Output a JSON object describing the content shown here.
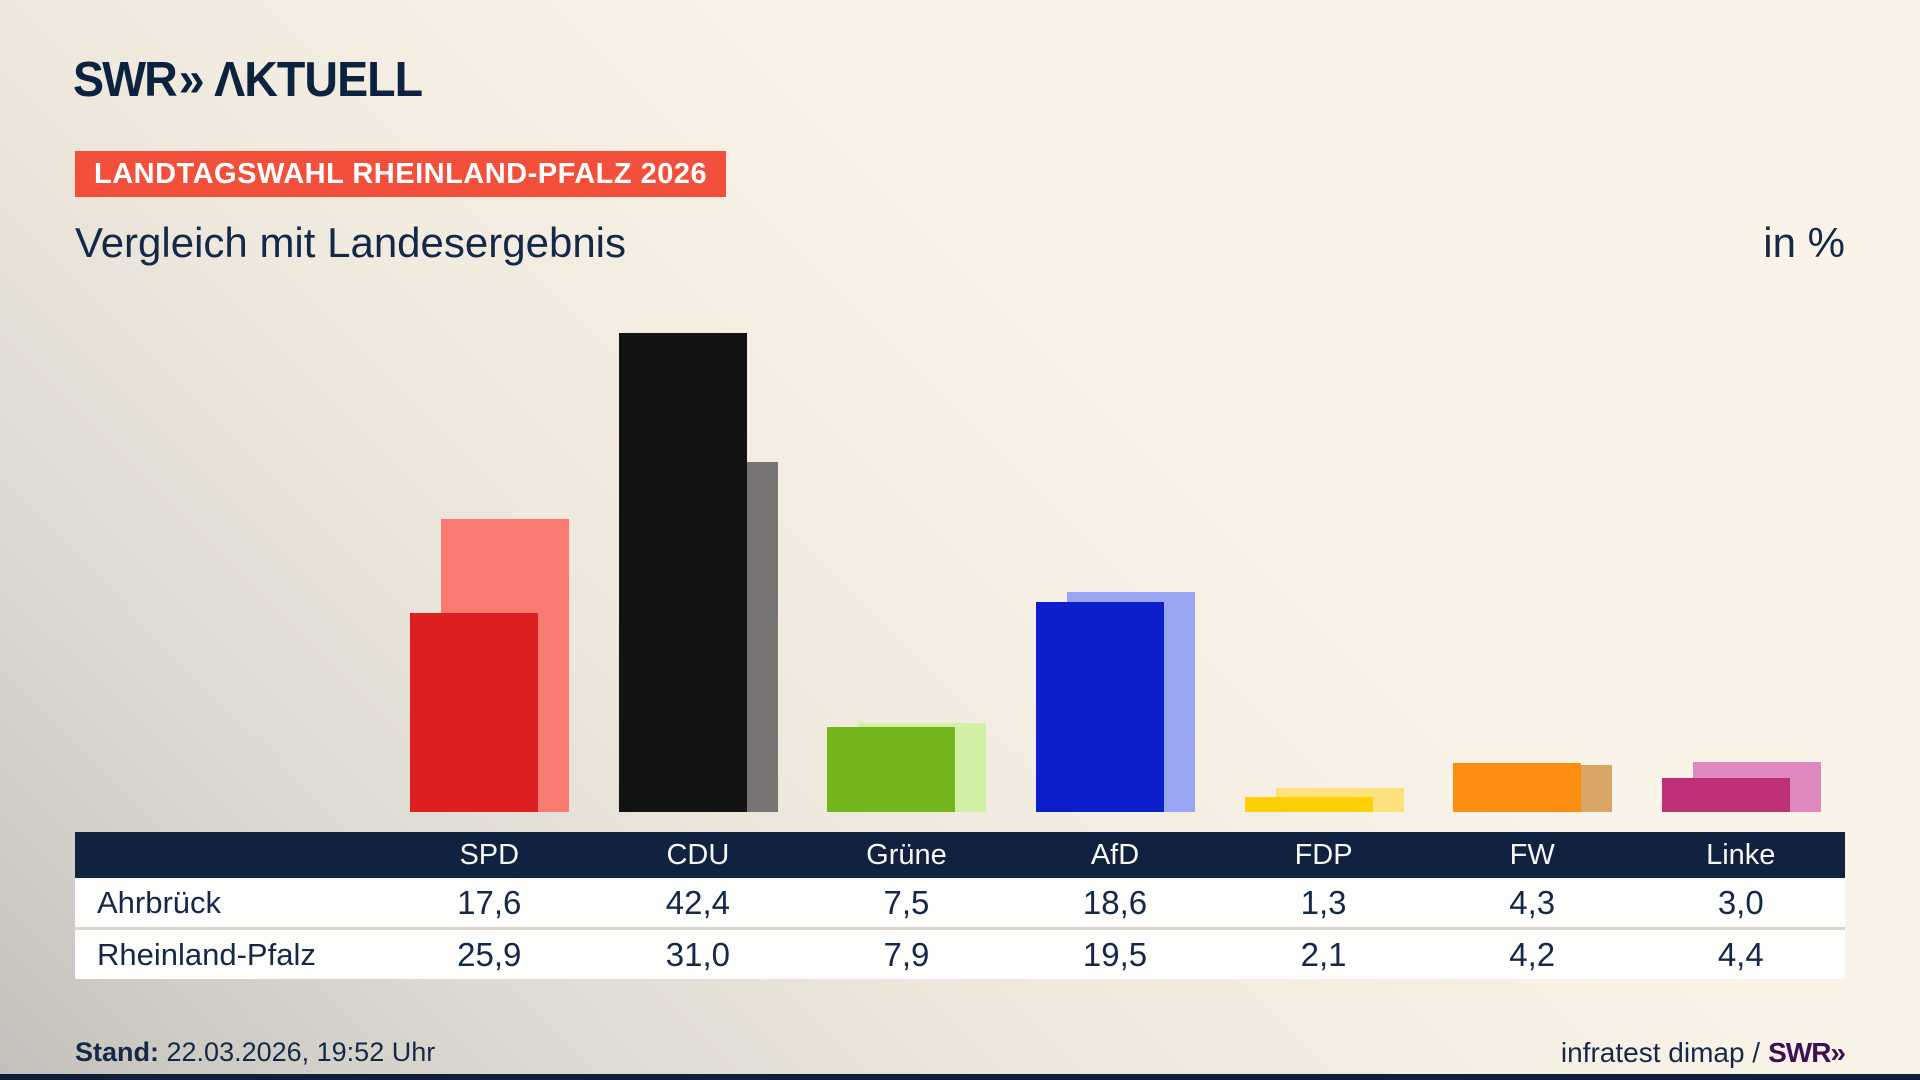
{
  "header": {
    "logo": {
      "swr": "SWR",
      "chevron": "»",
      "aktuell": "ΛKTUELL"
    },
    "badge": "LANDTAGSWAHL RHEINLAND-PFALZ 2026",
    "title": "Vergleich mit Landesergebnis",
    "unit": "in %"
  },
  "chart_data": {
    "type": "bar",
    "title": "Vergleich mit Landesergebnis",
    "unit": "in %",
    "categories": [
      "SPD",
      "CDU",
      "Grüne",
      "AfD",
      "FDP",
      "FW",
      "Linke"
    ],
    "series": [
      {
        "name": "Ahrbrück",
        "role": "front",
        "values": [
          17.6,
          42.4,
          7.5,
          18.6,
          1.3,
          4.3,
          3.0
        ]
      },
      {
        "name": "Rheinland-Pfalz",
        "role": "back",
        "values": [
          25.9,
          31.0,
          7.9,
          19.5,
          2.1,
          4.2,
          4.4
        ]
      }
    ],
    "party_colors": [
      {
        "party": "SPD",
        "front": "#dc2020",
        "back": "#f97a70"
      },
      {
        "party": "CDU",
        "front": "#131313",
        "back": "#787474"
      },
      {
        "party": "Grüne",
        "front": "#74b51d",
        "back": "#d2f0a5"
      },
      {
        "party": "AfD",
        "front": "#0c1fca",
        "back": "#99a6f4"
      },
      {
        "party": "FDP",
        "front": "#fdd005",
        "back": "#fde17f"
      },
      {
        "party": "FW",
        "front": "#fb8d11",
        "back": "#d9a667"
      },
      {
        "party": "Linke",
        "front": "#bd3078",
        "back": "#df87bf"
      }
    ],
    "value_labels_on_bars": false,
    "grid": false,
    "axes_hidden": true,
    "legend_position": "table-below"
  },
  "table": {
    "columns": [
      "SPD",
      "CDU",
      "Grüne",
      "AfD",
      "FDP",
      "FW",
      "Linke"
    ],
    "rows": [
      {
        "label": "Ahrbrück",
        "cells": [
          "17,6",
          "42,4",
          "7,5",
          "18,6",
          "1,3",
          "4,3",
          "3,0"
        ]
      },
      {
        "label": "Rheinland-Pfalz",
        "cells": [
          "25,9",
          "31,0",
          "7,9",
          "19,5",
          "2,1",
          "4,2",
          "4,4"
        ]
      }
    ]
  },
  "footer": {
    "stand_label": "Stand:",
    "stand_value": "22.03.2026, 19:52 Uhr",
    "credit": "infratest dimap /",
    "credit_logo": "SWR»"
  },
  "colors": {
    "accent_red": "#f2503b",
    "navy_text": "#14294a",
    "table_header_bg": "#112240",
    "swr_purple": "#3c1053",
    "background_light": "#faf3e8",
    "background_dark": "#c3c0bb"
  }
}
